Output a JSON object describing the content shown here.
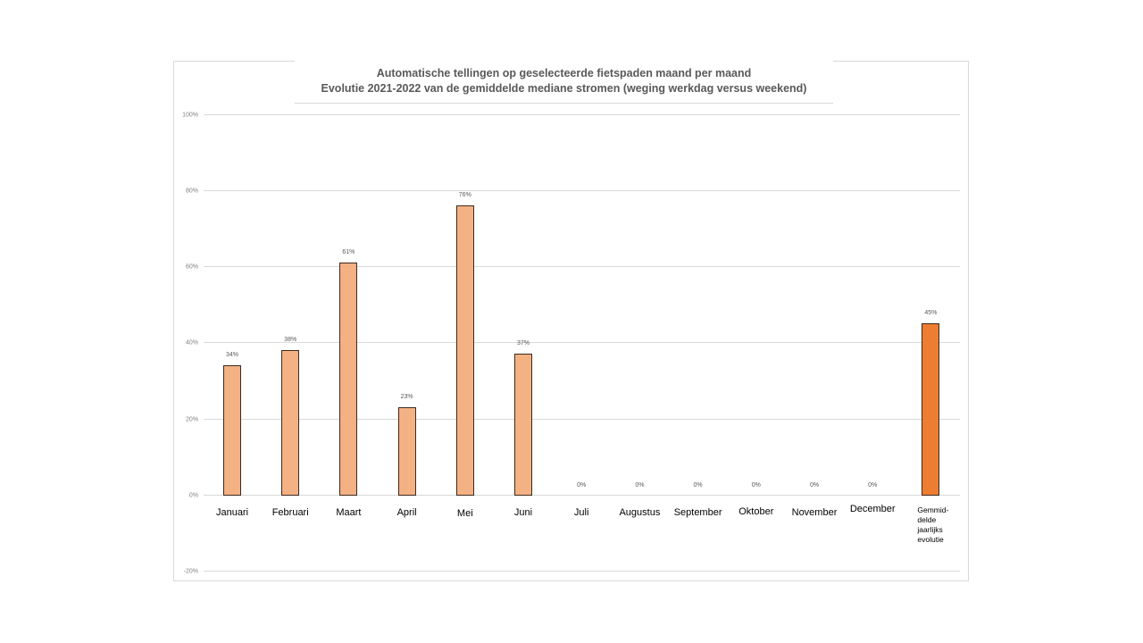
{
  "chart_data": {
    "type": "bar",
    "title": "Automatische tellingen op geselecteerde fietspaden maand per maand",
    "subtitle": "Evolutie 2021-2022 van de gemiddelde mediane stromen (weging werkdag versus weekend)",
    "xlabel": "",
    "ylabel": "",
    "ylim": [
      -20,
      100
    ],
    "yticks": [
      "100%",
      "80%",
      "60%",
      "40%",
      "20%",
      "0%",
      "-20%"
    ],
    "grid": true,
    "legend": "none",
    "categories": [
      "Januari",
      "Februari",
      "Maart",
      "April",
      "Mei",
      "Juni",
      "Juli",
      "Augustus",
      "September",
      "Oktober",
      "November",
      "December",
      "Gemmid-\ndelde\njaarlijks\nevolutie"
    ],
    "values": [
      34,
      38,
      61,
      23,
      76,
      37,
      0,
      0,
      0,
      0,
      0,
      0,
      45
    ],
    "data_labels": [
      "34%",
      "38%",
      "61%",
      "23%",
      "76%",
      "37%",
      "0%",
      "0%",
      "0%",
      "0%",
      "0%",
      "0%",
      "45%"
    ],
    "colors": {
      "monthly_bar": "#f4b183",
      "average_bar": "#ed7d31",
      "bar_border": "#3b2a1f",
      "gridline": "#d9d9d9"
    }
  }
}
